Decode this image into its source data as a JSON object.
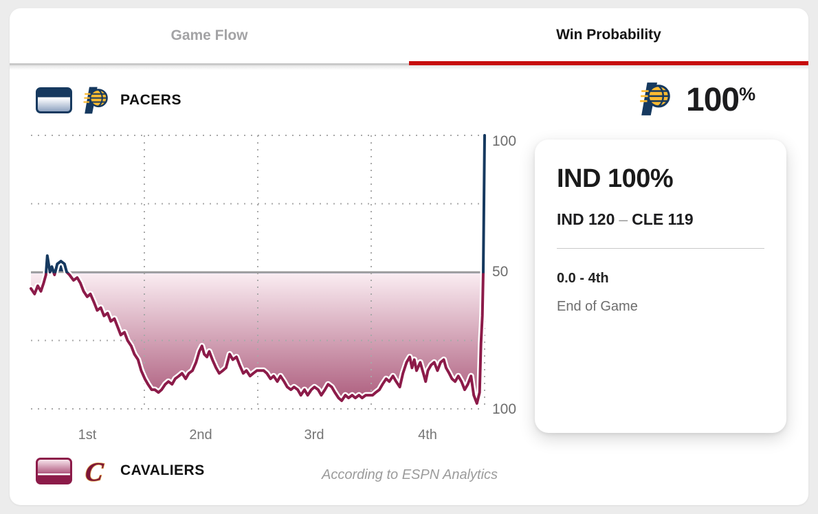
{
  "tabs": {
    "game_flow_label": "Game Flow",
    "win_probability_label": "Win Probability"
  },
  "teams": {
    "pacers": {
      "name": "PACERS",
      "abbr": "IND"
    },
    "cavaliers": {
      "name": "CAVALIERS",
      "abbr": "CLE"
    }
  },
  "headline": {
    "value": "100",
    "unit": "%"
  },
  "info_card": {
    "title": "IND 100%",
    "score_home": "IND 120",
    "score_dash": "–",
    "score_away": "CLE 119",
    "time": "0.0 - 4th",
    "status": "End of Game"
  },
  "footer": {
    "attribution": "According to ESPN Analytics"
  },
  "colors": {
    "pacers_navy": "#16395f",
    "pacers_gold": "#fdbb30",
    "cavaliers_wine": "#8c1b49",
    "cavaliers_gold": "#dfa04b",
    "accent_red": "#c60c0c",
    "fill_top": "#fbeef3",
    "fill_bottom": "#a85476",
    "grid_gray": "#a8a8a8",
    "midline_gray": "#9c9c9c",
    "halo_white": "#ffffff"
  },
  "chart_data": {
    "type": "area",
    "title": "Win Probability",
    "x_axis": {
      "tick_labels": [
        "1st",
        "2nd",
        "3rd",
        "4th"
      ],
      "unit": "quarter",
      "gridlines_pct": [
        25,
        50,
        75,
        100
      ]
    },
    "y_axis": {
      "tick_labels": [
        "100",
        "50",
        "100"
      ],
      "range": [
        0,
        100
      ],
      "midline_pct": 50,
      "top_meaning": "IND 100%",
      "bottom_meaning": "CLE 100%"
    },
    "legend_position": "outside-top-left-and-bottom-left",
    "grid": "dotted",
    "series": [
      {
        "name": "IND win probability (above 50 navy, below 50 wine)",
        "points": [
          [
            0,
            44
          ],
          [
            0.8,
            42
          ],
          [
            1.5,
            45
          ],
          [
            2.2,
            43
          ],
          [
            2.8,
            46
          ],
          [
            3.3,
            49
          ],
          [
            3.6,
            56
          ],
          [
            4.2,
            50
          ],
          [
            4.6,
            52
          ],
          [
            5.2,
            49
          ],
          [
            5.8,
            53
          ],
          [
            6.6,
            54
          ],
          [
            7.4,
            53
          ],
          [
            7.9,
            50
          ],
          [
            8.5,
            49
          ],
          [
            9.4,
            47
          ],
          [
            10.2,
            48
          ],
          [
            10.9,
            46
          ],
          [
            11.6,
            43
          ],
          [
            12.4,
            41
          ],
          [
            13.1,
            42
          ],
          [
            13.9,
            39
          ],
          [
            14.6,
            36
          ],
          [
            15.4,
            37
          ],
          [
            16.1,
            34
          ],
          [
            16.9,
            35
          ],
          [
            17.6,
            32
          ],
          [
            18.4,
            33
          ],
          [
            19.1,
            30
          ],
          [
            19.8,
            27
          ],
          [
            20.6,
            28
          ],
          [
            21.3,
            25
          ],
          [
            22.1,
            23
          ],
          [
            22.8,
            20
          ],
          [
            23.6,
            18
          ],
          [
            24.3,
            14
          ],
          [
            25.1,
            11
          ],
          [
            25.8,
            9
          ],
          [
            26.6,
            7
          ],
          [
            27.3,
            7
          ],
          [
            28.1,
            6
          ],
          [
            28.8,
            7
          ],
          [
            29.6,
            9
          ],
          [
            30.3,
            10
          ],
          [
            31.1,
            9
          ],
          [
            31.8,
            11
          ],
          [
            32.6,
            12
          ],
          [
            33.3,
            13
          ],
          [
            34.1,
            11
          ],
          [
            34.8,
            13
          ],
          [
            35.6,
            14
          ],
          [
            36.4,
            17
          ],
          [
            37.1,
            21
          ],
          [
            37.7,
            23
          ],
          [
            38.2,
            20
          ],
          [
            38.8,
            19
          ],
          [
            39.3,
            21
          ],
          [
            40,
            18
          ],
          [
            40.8,
            15
          ],
          [
            41.5,
            13
          ],
          [
            42.3,
            14
          ],
          [
            43,
            15
          ],
          [
            43.8,
            20
          ],
          [
            44.5,
            18
          ],
          [
            45.3,
            19
          ],
          [
            46,
            16
          ],
          [
            46.8,
            13
          ],
          [
            47.5,
            14
          ],
          [
            48.3,
            12
          ],
          [
            49,
            13
          ],
          [
            49.8,
            14
          ],
          [
            50.5,
            14
          ],
          [
            51.3,
            14
          ],
          [
            52,
            13
          ],
          [
            52.8,
            11
          ],
          [
            53.5,
            12
          ],
          [
            54.3,
            10
          ],
          [
            55,
            12
          ],
          [
            55.8,
            10
          ],
          [
            56.5,
            8
          ],
          [
            57.3,
            7
          ],
          [
            58,
            8
          ],
          [
            58.8,
            7
          ],
          [
            59.5,
            5
          ],
          [
            60.3,
            7
          ],
          [
            61,
            5
          ],
          [
            61.8,
            7
          ],
          [
            62.5,
            8
          ],
          [
            63.3,
            7
          ],
          [
            64,
            5
          ],
          [
            64.8,
            7
          ],
          [
            65.5,
            9
          ],
          [
            66.3,
            8
          ],
          [
            67,
            6
          ],
          [
            67.8,
            4
          ],
          [
            68.5,
            3
          ],
          [
            69.3,
            5
          ],
          [
            70,
            4
          ],
          [
            70.8,
            5
          ],
          [
            71.5,
            4
          ],
          [
            72.3,
            5
          ],
          [
            73,
            4
          ],
          [
            73.8,
            5
          ],
          [
            74.5,
            5
          ],
          [
            75.3,
            5
          ],
          [
            76,
            6
          ],
          [
            76.8,
            7
          ],
          [
            77.5,
            9
          ],
          [
            78.3,
            11
          ],
          [
            79,
            10
          ],
          [
            79.8,
            12
          ],
          [
            80.5,
            10
          ],
          [
            81.3,
            8
          ],
          [
            82,
            13
          ],
          [
            82.8,
            17
          ],
          [
            83.5,
            19
          ],
          [
            84,
            15
          ],
          [
            84.5,
            18
          ],
          [
            85,
            14
          ],
          [
            85.8,
            17
          ],
          [
            86.5,
            13
          ],
          [
            87,
            10
          ],
          [
            87.5,
            14
          ],
          [
            88.2,
            16
          ],
          [
            88.9,
            17
          ],
          [
            89.6,
            14
          ],
          [
            90.3,
            17
          ],
          [
            91,
            18
          ],
          [
            91.5,
            15
          ],
          [
            92.2,
            13
          ],
          [
            92.8,
            11
          ],
          [
            93.5,
            10
          ],
          [
            94.2,
            12
          ],
          [
            94.9,
            10
          ],
          [
            95.6,
            7
          ],
          [
            96.3,
            9
          ],
          [
            97,
            12
          ],
          [
            97.6,
            5
          ],
          [
            98.3,
            2
          ],
          [
            98.9,
            6
          ],
          [
            99.2,
            24
          ],
          [
            99.5,
            34
          ],
          [
            99.7,
            50
          ],
          [
            99.85,
            75
          ],
          [
            100,
            100
          ]
        ]
      }
    ],
    "final_value_pct": 100,
    "annotation": "According to ESPN Analytics"
  }
}
